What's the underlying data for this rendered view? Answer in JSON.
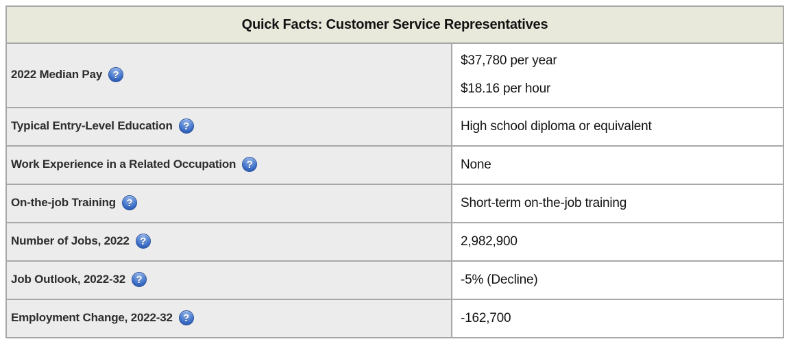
{
  "table": {
    "title": "Quick Facts: Customer Service Representatives",
    "help_icon": {
      "glyph": "?"
    },
    "colors": {
      "header_bg": "#e9e9db",
      "label_bg": "#ececec",
      "value_bg": "#ffffff",
      "border": "#a8a8a8",
      "icon_blue": "#3c6fc8"
    },
    "rows": [
      {
        "label": "2022 Median Pay",
        "values": [
          "$37,780 per year",
          "$18.16 per hour"
        ]
      },
      {
        "label": "Typical Entry-Level Education",
        "values": [
          "High school diploma or equivalent"
        ]
      },
      {
        "label": "Work Experience in a Related Occupation",
        "values": [
          "None"
        ]
      },
      {
        "label": "On-the-job Training",
        "values": [
          "Short-term on-the-job training"
        ]
      },
      {
        "label": "Number of Jobs, 2022",
        "values": [
          "2,982,900"
        ]
      },
      {
        "label": "Job Outlook, 2022-32",
        "values": [
          "-5% (Decline)"
        ]
      },
      {
        "label": "Employment Change, 2022-32",
        "values": [
          "-162,700"
        ]
      }
    ]
  }
}
